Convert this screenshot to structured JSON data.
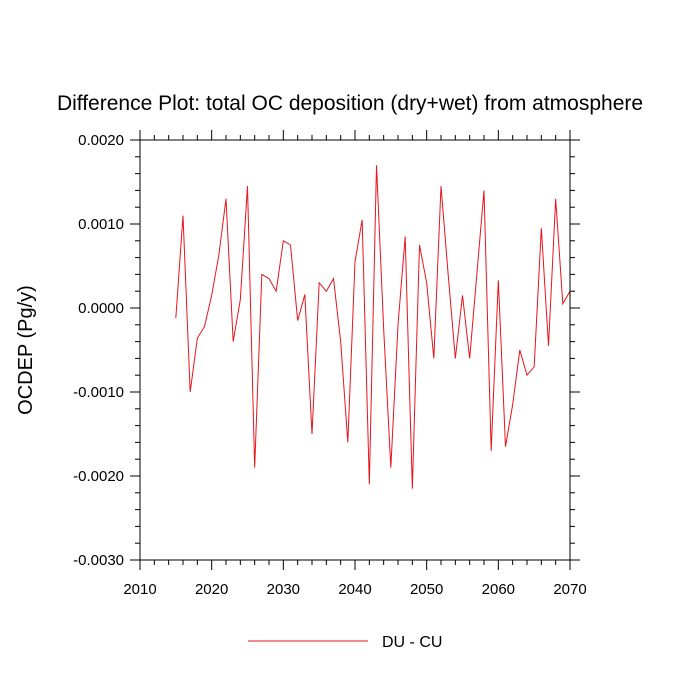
{
  "chart_data": {
    "type": "line",
    "title": "Difference Plot: total OC deposition (dry+wet) from atmosphere",
    "xlabel": "",
    "ylabel": "OCDEP  (Pg/y)",
    "xlim": [
      2010,
      2070
    ],
    "ylim": [
      -0.003,
      0.002
    ],
    "x_ticks": [
      2010,
      2020,
      2030,
      2040,
      2050,
      2060,
      2070
    ],
    "x_tick_labels": [
      "2010",
      "2020",
      "2030",
      "2040",
      "2050",
      "2060",
      "2070"
    ],
    "y_ticks": [
      0.002,
      0.001,
      0.0,
      -0.001,
      -0.002,
      -0.003
    ],
    "y_tick_labels": [
      "0.0020",
      "0.0010",
      "0.0000",
      "-0.0010",
      "-0.0020",
      "-0.0030"
    ],
    "grid": false,
    "legend_position": "bottom-center",
    "series": [
      {
        "name": "DU - CU",
        "color": "#e8141c",
        "x": [
          2015,
          2016,
          2017,
          2018,
          2019,
          2020,
          2021,
          2022,
          2023,
          2024,
          2025,
          2026,
          2027,
          2028,
          2029,
          2030,
          2031,
          2032,
          2033,
          2034,
          2035,
          2036,
          2037,
          2038,
          2039,
          2040,
          2041,
          2042,
          2043,
          2044,
          2045,
          2046,
          2047,
          2048,
          2049,
          2050,
          2051,
          2052,
          2053,
          2054,
          2055,
          2056,
          2057,
          2058,
          2059,
          2060,
          2061,
          2062,
          2063,
          2064,
          2065,
          2066,
          2067,
          2068,
          2069,
          2070
        ],
        "values": [
          -0.00012,
          0.0011,
          -0.001,
          -0.00036,
          -0.00022,
          0.00015,
          0.00063,
          0.0013,
          -0.0004,
          0.0001,
          0.00145,
          -0.0019,
          0.0004,
          0.00035,
          0.0002,
          0.0008,
          0.00075,
          -0.00015,
          0.00016,
          -0.0015,
          0.0003,
          0.0002,
          0.00035,
          -0.0004,
          -0.0016,
          0.00055,
          0.00105,
          -0.0021,
          0.0017,
          -0.00025,
          -0.0019,
          -0.0002,
          0.00085,
          -0.00215,
          0.00075,
          0.0003,
          -0.0006,
          0.00145,
          0.0004,
          -0.0006,
          0.00015,
          -0.0006,
          0.0004,
          0.0014,
          -0.0017,
          0.00033,
          -0.00165,
          -0.00115,
          -0.0005,
          -0.0008,
          -0.0007,
          0.00095,
          -0.00045,
          0.0013,
          5e-05,
          0.0002
        ]
      }
    ]
  }
}
